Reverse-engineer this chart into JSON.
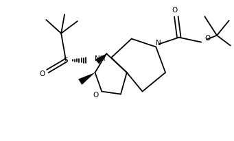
{
  "bg_color": "#ffffff",
  "line_color": "#000000",
  "lw": 1.3,
  "figsize": [
    3.41,
    2.06
  ],
  "dpi": 100,
  "xlim": [
    0,
    341
  ],
  "ylim": [
    0,
    206
  ]
}
